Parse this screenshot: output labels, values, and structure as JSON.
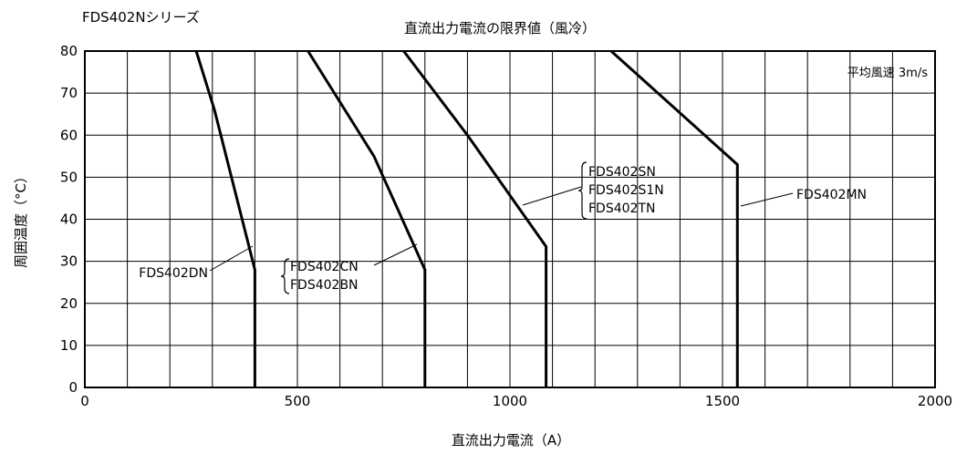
{
  "chart_data": {
    "type": "line",
    "series_label": "FDS402Nシリーズ",
    "title": "直流出力電流の限界値（風冷）",
    "xlabel": "直流出力電流（A）",
    "ylabel": "周囲温度（°C）",
    "xlim": [
      0,
      2000
    ],
    "ylim": [
      0,
      80
    ],
    "xticks": [
      0,
      500,
      1000,
      1500,
      2000
    ],
    "yticks": [
      0,
      10,
      20,
      30,
      40,
      50,
      60,
      70,
      80
    ],
    "xtick_labels": [
      "0",
      "500",
      "1000",
      "1500",
      "2000"
    ],
    "ytick_labels": [
      "0",
      "10",
      "20",
      "30",
      "40",
      "50",
      "60",
      "70",
      "80"
    ],
    "grid": true,
    "condition_note": "平均風速 3m/s",
    "series": [
      {
        "id": "dn",
        "label_lines": [
          "FDS402DN"
        ],
        "x": [
          262,
          305,
          400,
          400
        ],
        "y": [
          80,
          66,
          28,
          0
        ]
      },
      {
        "id": "cn",
        "label_lines": [
          "FDS402CN",
          "FDS402BN"
        ],
        "x": [
          525,
          680,
          800,
          800
        ],
        "y": [
          80,
          55,
          28,
          0
        ]
      },
      {
        "id": "sn",
        "label_lines": [
          "FDS402SN",
          "FDS402S1N",
          "FDS402TN"
        ],
        "x": [
          750,
          900,
          1085,
          1085
        ],
        "y": [
          80,
          60,
          33.5,
          0
        ]
      },
      {
        "id": "mn",
        "label_lines": [
          "FDS402MN"
        ],
        "x": [
          1238,
          1535,
          1535
        ],
        "y": [
          80,
          53,
          0
        ]
      }
    ]
  }
}
